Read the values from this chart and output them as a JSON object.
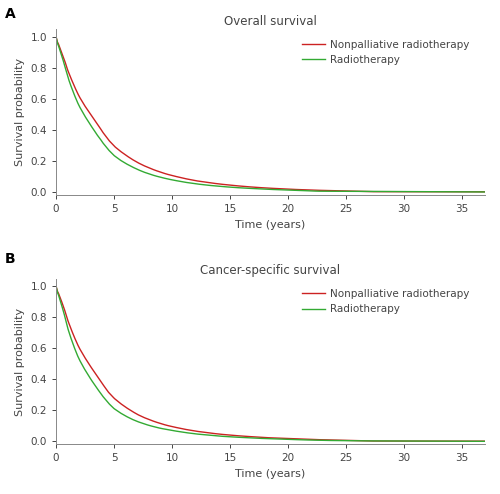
{
  "panel_A_title": "Overall survival",
  "panel_B_title": "Cancer-specific survival",
  "xlabel": "Time (years)",
  "ylabel": "Survival probability",
  "xlim": [
    0,
    37
  ],
  "ylim": [
    -0.02,
    1.05
  ],
  "xticks": [
    0,
    5,
    10,
    15,
    20,
    25,
    30,
    35
  ],
  "yticks": [
    0.0,
    0.2,
    0.4,
    0.6,
    0.8,
    1.0
  ],
  "legend_labels": [
    "Nonpalliative radiotherapy",
    "Radiotherapy"
  ],
  "color_nonpalliative": "#CC2222",
  "color_radiotherapy": "#33AA33",
  "panel_label_A": "A",
  "panel_label_B": "B",
  "title_font_size": 8.5,
  "label_font_size": 8,
  "tick_font_size": 7.5,
  "legend_font_size": 7.5,
  "linewidth": 1.0
}
